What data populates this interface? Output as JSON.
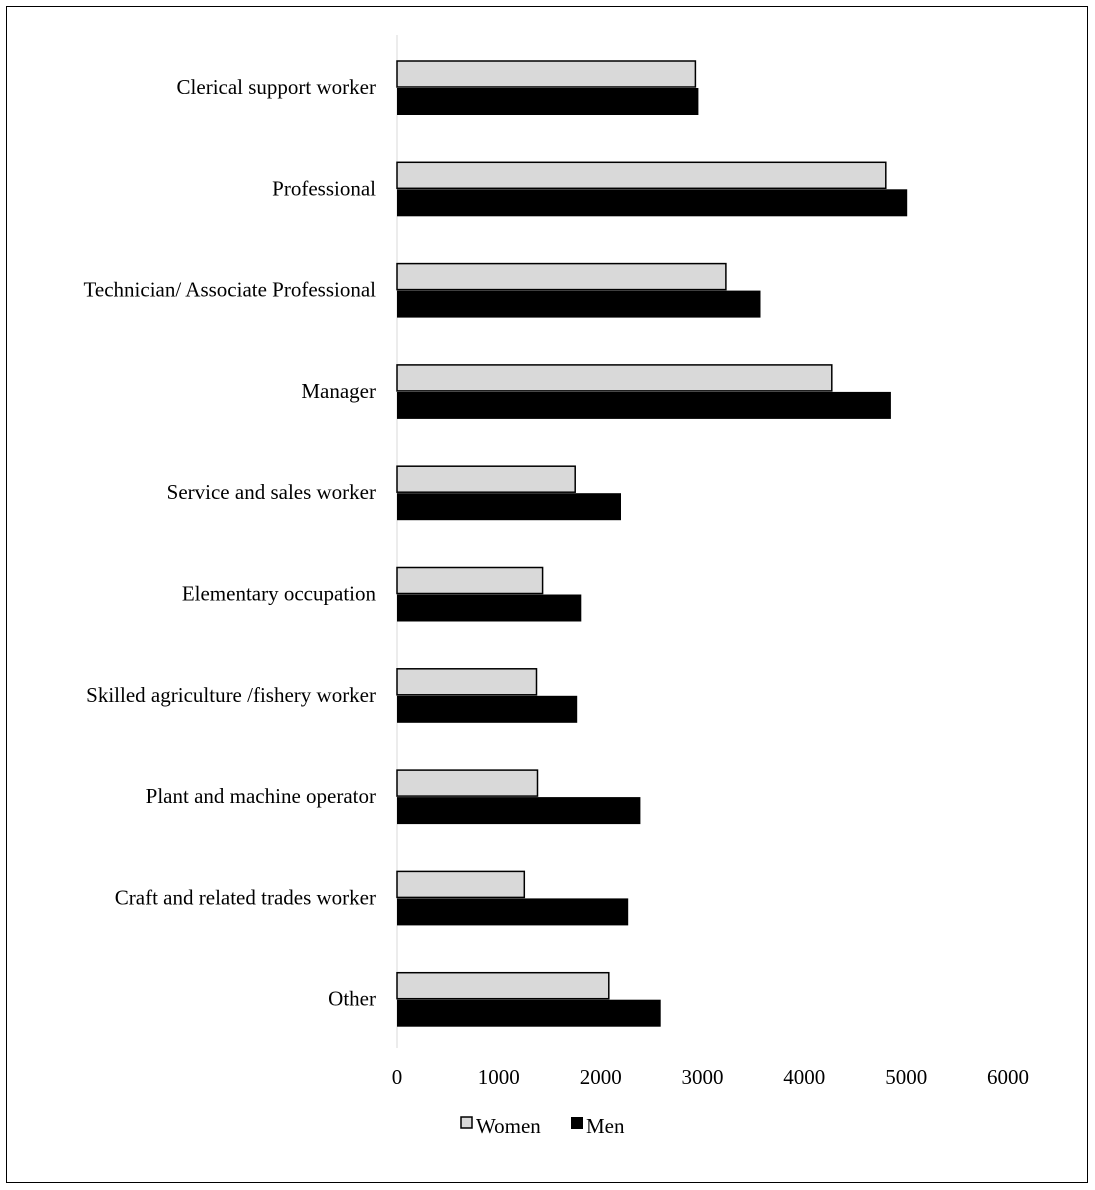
{
  "chart_data": {
    "type": "bar",
    "orientation": "horizontal",
    "categories": [
      "Clerical support worker",
      "Professional",
      "Technician/ Associate Professional",
      "Manager",
      "Service and sales worker",
      "Elementary occupation",
      "Skilled agriculture /fishery worker",
      "Plant and machine operator",
      "Craft and related trades worker",
      "Other"
    ],
    "series": [
      {
        "name": "Women",
        "color": "#d9d9d9",
        "values": [
          2930,
          4800,
          3230,
          4270,
          1750,
          1430,
          1370,
          1380,
          1250,
          2080
        ]
      },
      {
        "name": "Men",
        "color": "#000000",
        "values": [
          2960,
          5010,
          3570,
          4850,
          2200,
          1810,
          1770,
          2390,
          2270,
          2590
        ]
      }
    ],
    "xlim": [
      0,
      6000
    ],
    "x_ticks": [
      "0",
      "1000",
      "2000",
      "3000",
      "4000",
      "5000",
      "6000"
    ],
    "title": "",
    "xlabel": "",
    "ylabel": "",
    "grid": false,
    "legend_position": "bottom"
  }
}
